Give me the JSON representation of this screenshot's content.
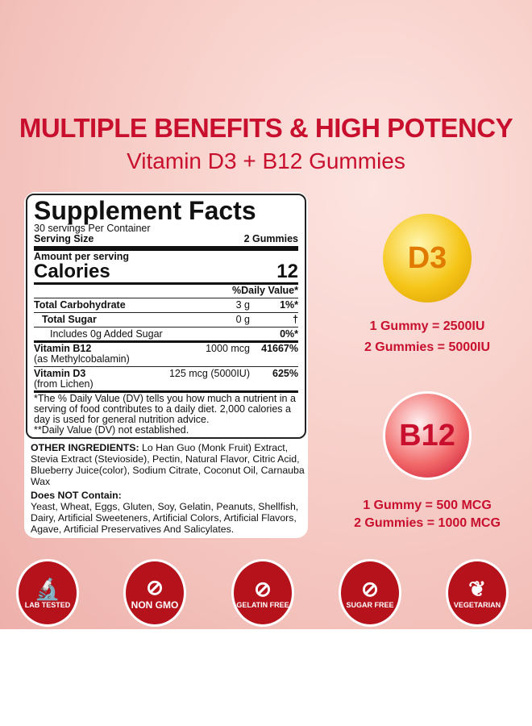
{
  "header": {
    "title": "MULTIPLE BENEFITS & HIGH POTENCY",
    "subtitle": "Vitamin D3 + B12 Gummies"
  },
  "facts": {
    "title": "Supplement Facts",
    "servings": "30 servings Per Container",
    "serving_size_label": "Serving Size",
    "serving_size": "2 Gummies",
    "amount_label": "Amount per serving",
    "calories_label": "Calories",
    "calories": "12",
    "dv_header": "%Daily Value*",
    "rows": [
      {
        "name": "Total Carbohydrate",
        "amount": "3 g",
        "dv": "1%*"
      },
      {
        "name": "Total Sugar",
        "amount": "0 g",
        "dv": "†"
      },
      {
        "name": "Includes 0g Added Sugar",
        "amount": "",
        "dv": "0%*"
      },
      {
        "name": "Vitamin B12",
        "sub": "(as Methylcobalamin)",
        "amount": "1000 mcg",
        "dv": "41667%"
      },
      {
        "name": "Vitamin D3",
        "sub": "(from Lichen)",
        "amount": "125 mcg (5000IU)",
        "dv": "625%"
      }
    ],
    "footnote": "*The % Daily Value (DV) tells you how much a nutrient in a serving of food contributes to a daily diet. 2,000 calories a day is used for general nutrition advice.",
    "footnote2": "**Daily Value (DV) not established."
  },
  "ingredients": {
    "label": "OTHER INGREDIENTS:",
    "text": " Lo Han Guo (Monk Fruit) Extract, Stevia Extract (Stevioside), Pectin, Natural Flavor, Citric Acid, Blueberry Juice(color), Sodium Citrate, Coconut Oil, Carnauba Wax",
    "not_label": "Does NOT Contain:",
    "not_text": "Yeast, Wheat, Eggs, Gluten, Soy, Gelatin, Peanuts, Shellfish, Dairy, Artificial Sweeteners, Artificial Colors, Artificial Flavors, Agave, Artificial Preservatives And Salicylates."
  },
  "d3": {
    "label": "D3",
    "dose1": "1 Gummy = 2500IU",
    "dose2": "2 Gummies = 5000IU"
  },
  "b12": {
    "label": "B12",
    "dose1": "1 Gummy = 500 MCG",
    "dose2": "2 Gummies = 1000 MCG"
  },
  "badges": [
    {
      "label": "LAB TESTED",
      "icon": "microscope-icon"
    },
    {
      "label": "NON GMO",
      "icon": "dna-icon"
    },
    {
      "label": "GELATIN FREE",
      "icon": "jelly-icon"
    },
    {
      "label": "SUGAR FREE",
      "icon": "sugar-cube-icon"
    },
    {
      "label": "VEGETARIAN",
      "icon": "leaf-icon"
    }
  ],
  "colors": {
    "brand_red": "#c8102e",
    "badge_red": "#b5121b",
    "d3_gold": "#f5c518"
  }
}
